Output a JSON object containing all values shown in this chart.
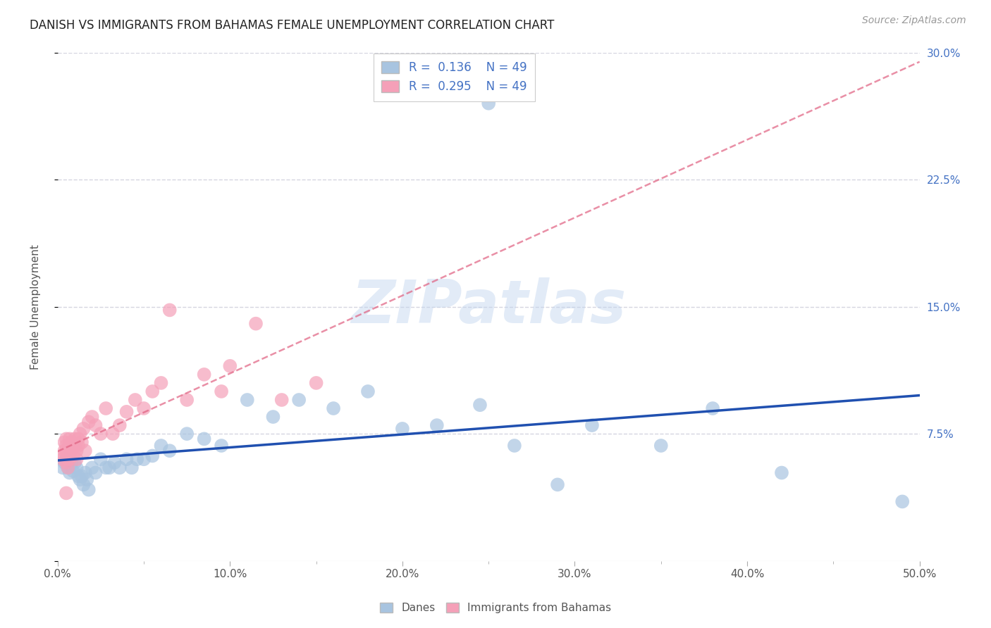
{
  "title": "DANISH VS IMMIGRANTS FROM BAHAMAS FEMALE UNEMPLOYMENT CORRELATION CHART",
  "source": "Source: ZipAtlas.com",
  "ylabel": "Female Unemployment",
  "xlim": [
    0.0,
    0.5
  ],
  "ylim": [
    0.0,
    0.3
  ],
  "xticks": [
    0.0,
    0.1,
    0.2,
    0.3,
    0.4,
    0.5
  ],
  "xminorticks": [
    0.05,
    0.15,
    0.25,
    0.35,
    0.45
  ],
  "yticks": [
    0.0,
    0.075,
    0.15,
    0.225,
    0.3
  ],
  "xticklabels": [
    "0.0%",
    "10.0%",
    "20.0%",
    "30.0%",
    "40.0%",
    "50.0%"
  ],
  "yticklabels_right": [
    "",
    "7.5%",
    "15.0%",
    "22.5%",
    "30.0%"
  ],
  "danish_R": 0.136,
  "bahamas_R": 0.295,
  "N": 49,
  "danish_color": "#a8c4e0",
  "bahamas_color": "#f5a0b8",
  "danish_line_color": "#2050b0",
  "bahamas_line_color": "#e06080",
  "watermark": "ZIPatlas",
  "grid_color": "#d5d5e0",
  "danish_x": [
    0.003,
    0.004,
    0.005,
    0.006,
    0.007,
    0.008,
    0.009,
    0.01,
    0.011,
    0.012,
    0.013,
    0.014,
    0.015,
    0.016,
    0.017,
    0.018,
    0.02,
    0.022,
    0.025,
    0.028,
    0.03,
    0.033,
    0.036,
    0.04,
    0.043,
    0.046,
    0.05,
    0.055,
    0.06,
    0.065,
    0.075,
    0.085,
    0.095,
    0.11,
    0.125,
    0.14,
    0.16,
    0.18,
    0.2,
    0.22,
    0.245,
    0.265,
    0.29,
    0.31,
    0.35,
    0.38,
    0.42,
    0.49,
    0.25
  ],
  "danish_y": [
    0.055,
    0.058,
    0.06,
    0.055,
    0.052,
    0.058,
    0.053,
    0.058,
    0.055,
    0.05,
    0.048,
    0.05,
    0.045,
    0.052,
    0.048,
    0.042,
    0.055,
    0.052,
    0.06,
    0.055,
    0.055,
    0.058,
    0.055,
    0.06,
    0.055,
    0.06,
    0.06,
    0.062,
    0.068,
    0.065,
    0.075,
    0.072,
    0.068,
    0.095,
    0.085,
    0.095,
    0.09,
    0.1,
    0.078,
    0.08,
    0.092,
    0.068,
    0.045,
    0.08,
    0.068,
    0.09,
    0.052,
    0.035,
    0.27
  ],
  "bahamas_x": [
    0.003,
    0.003,
    0.004,
    0.004,
    0.005,
    0.005,
    0.005,
    0.005,
    0.006,
    0.006,
    0.006,
    0.007,
    0.007,
    0.007,
    0.008,
    0.008,
    0.009,
    0.009,
    0.01,
    0.01,
    0.011,
    0.011,
    0.012,
    0.012,
    0.013,
    0.014,
    0.015,
    0.016,
    0.018,
    0.02,
    0.022,
    0.025,
    0.028,
    0.032,
    0.036,
    0.04,
    0.045,
    0.05,
    0.055,
    0.06,
    0.065,
    0.075,
    0.085,
    0.095,
    0.1,
    0.115,
    0.13,
    0.15,
    0.005
  ],
  "bahamas_y": [
    0.06,
    0.062,
    0.065,
    0.07,
    0.068,
    0.072,
    0.065,
    0.058,
    0.06,
    0.062,
    0.055,
    0.068,
    0.072,
    0.06,
    0.065,
    0.07,
    0.068,
    0.062,
    0.072,
    0.068,
    0.06,
    0.065,
    0.072,
    0.068,
    0.075,
    0.07,
    0.078,
    0.065,
    0.082,
    0.085,
    0.08,
    0.075,
    0.09,
    0.075,
    0.08,
    0.088,
    0.095,
    0.09,
    0.1,
    0.105,
    0.148,
    0.095,
    0.11,
    0.1,
    0.115,
    0.14,
    0.095,
    0.105,
    0.04
  ]
}
